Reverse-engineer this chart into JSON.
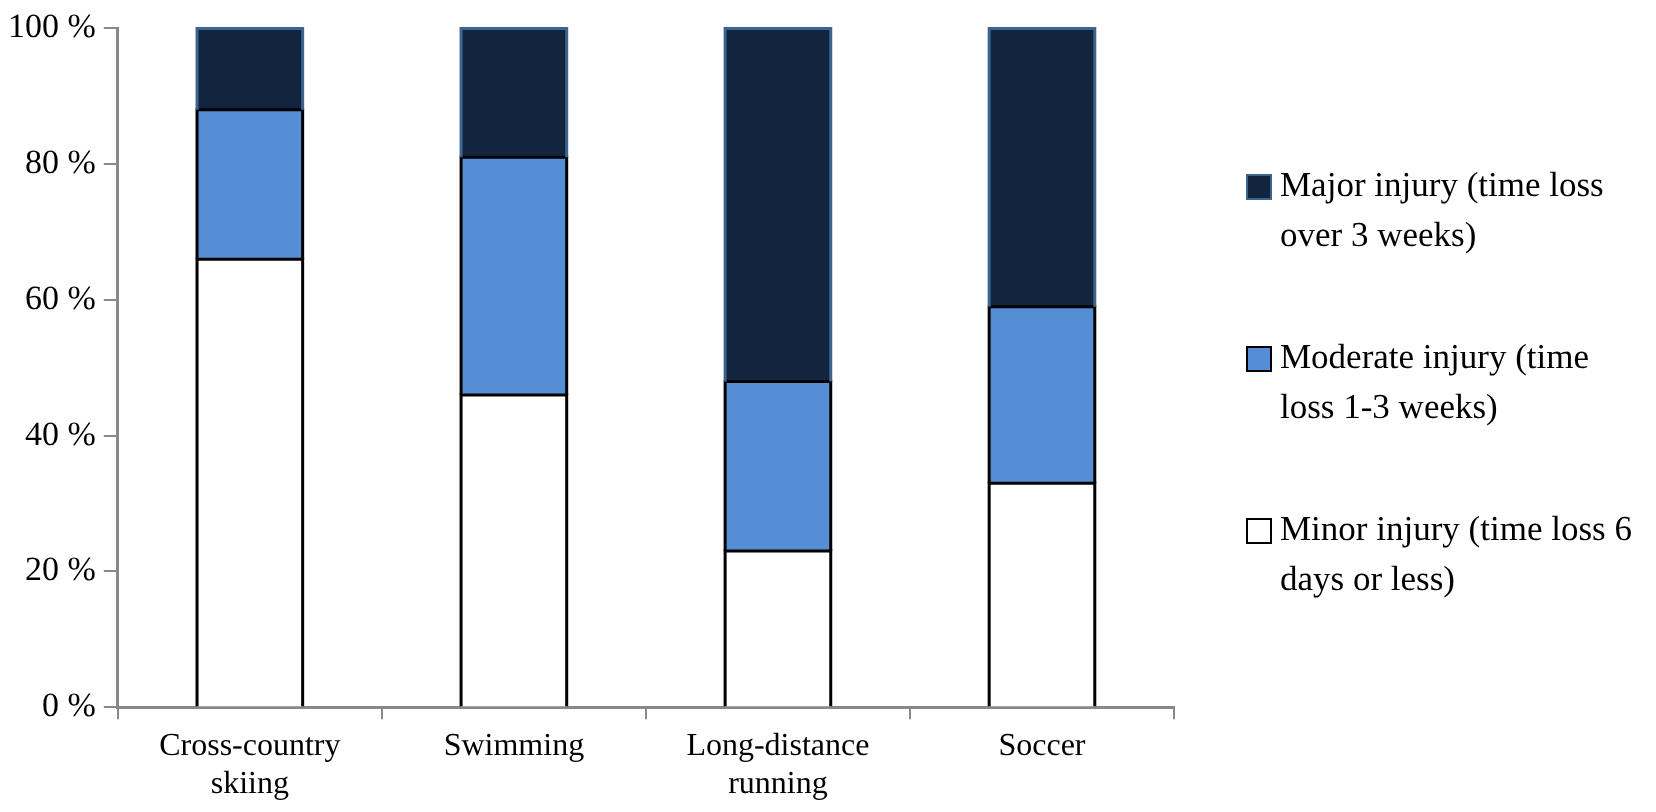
{
  "chart_data": {
    "type": "bar",
    "stacked": true,
    "categories": [
      "Cross-country skiing",
      "Swimming",
      "Long-distance running",
      "Soccer"
    ],
    "series": [
      {
        "name": "Minor injury (time loss 6 days or less)",
        "color": "#ffffff",
        "values": [
          66,
          46,
          23,
          33
        ]
      },
      {
        "name": "Moderate injury (time loss 1-3 weeks)",
        "color": "#558ed5",
        "values": [
          22,
          35,
          25,
          26
        ]
      },
      {
        "name": "Major injury (time loss over 3 weeks)",
        "color": "#13243f",
        "values": [
          12,
          19,
          52,
          41
        ]
      }
    ],
    "ylim": [
      0,
      100
    ],
    "yticks": [
      {
        "value": 0,
        "label": "0 %"
      },
      {
        "value": 20,
        "label": "20 %"
      },
      {
        "value": 40,
        "label": "40 %"
      },
      {
        "value": 60,
        "label": "60 %"
      },
      {
        "value": 80,
        "label": "80 %"
      },
      {
        "value": 100,
        "label": "100 %"
      }
    ],
    "grid": false,
    "legend": "right"
  }
}
